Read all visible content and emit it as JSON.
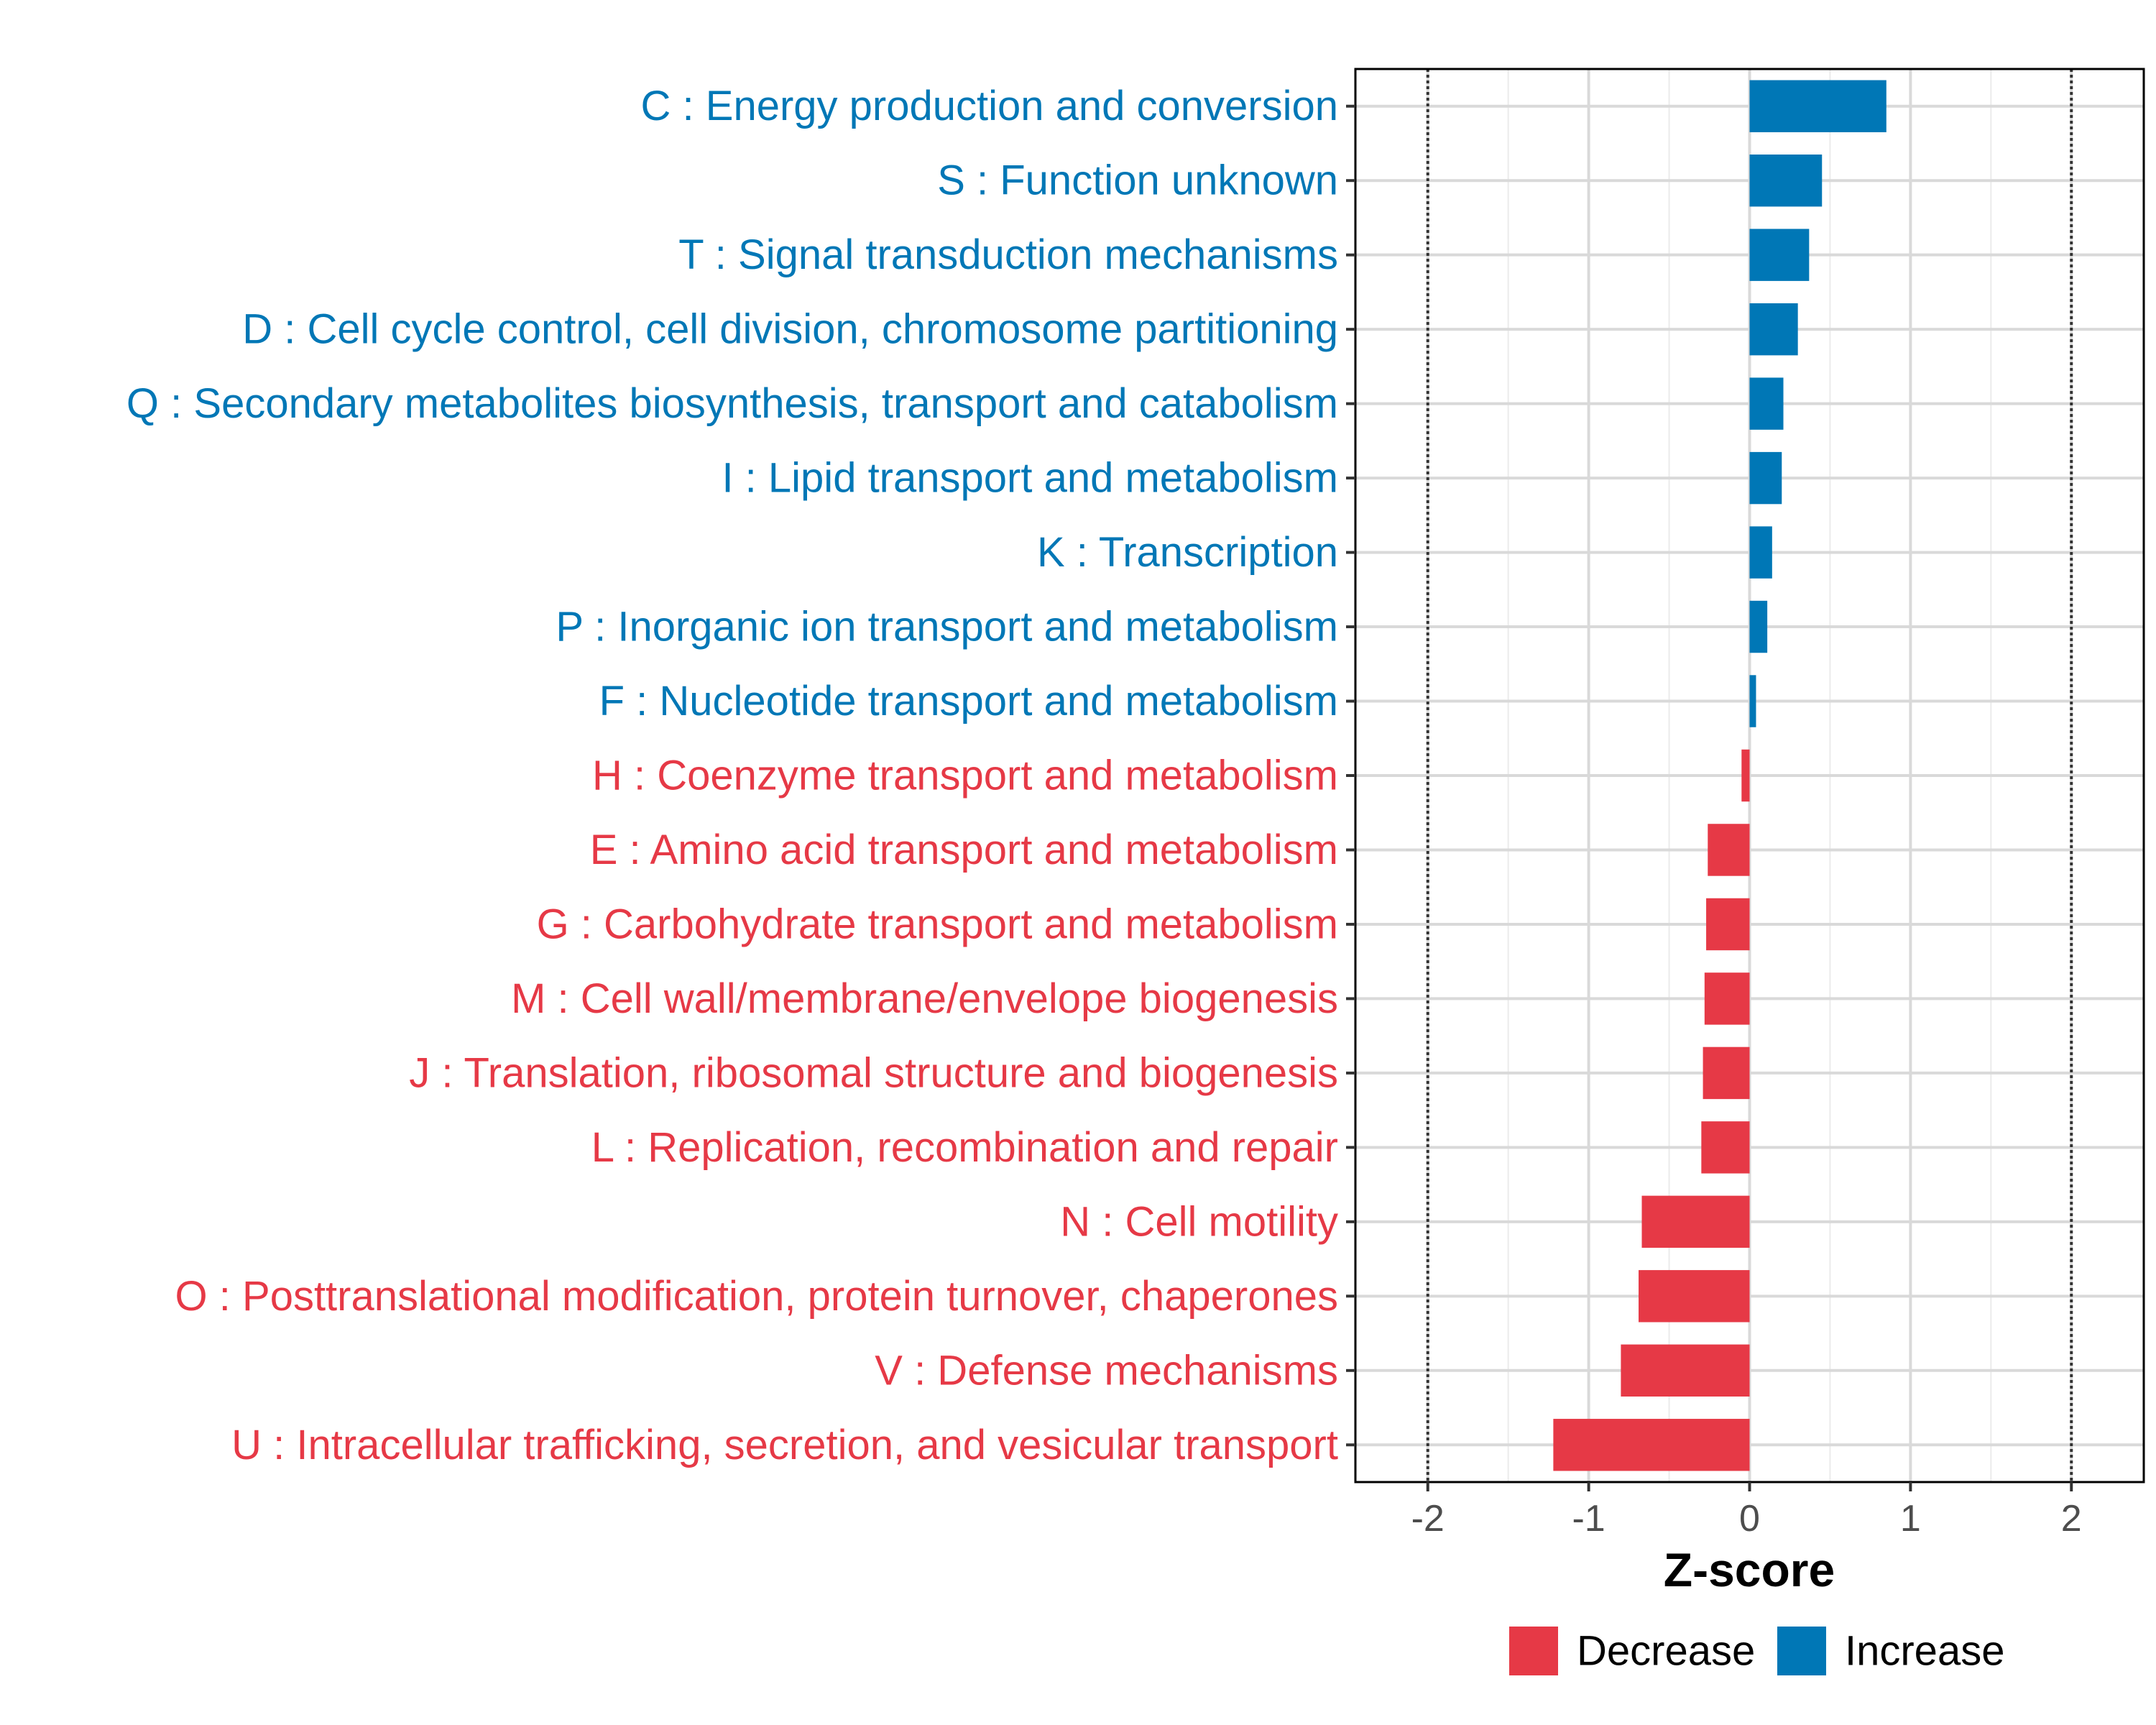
{
  "chart_data": {
    "type": "bar",
    "orientation": "horizontal",
    "title": "",
    "xlabel": "Z-score",
    "ylabel": "",
    "xlim": [
      -2.45,
      2.45
    ],
    "xticks": [
      -2,
      -1,
      0,
      1,
      2
    ],
    "xtick_labels": [
      "-2",
      "-1",
      "0",
      "1",
      "2"
    ],
    "reference_lines": [
      -2,
      2
    ],
    "grid": true,
    "legend_position": "bottom",
    "colors": {
      "Decrease": "#e63946",
      "Increase": "#0077b6"
    },
    "categories": [
      {
        "label": "C : Energy production and conversion",
        "value": 0.85,
        "group": "Increase"
      },
      {
        "label": "S : Function unknown",
        "value": 0.45,
        "group": "Increase"
      },
      {
        "label": "T : Signal transduction mechanisms",
        "value": 0.37,
        "group": "Increase"
      },
      {
        "label": "D : Cell cycle control, cell division, chromosome partitioning",
        "value": 0.3,
        "group": "Increase"
      },
      {
        "label": "Q : Secondary metabolites biosynthesis, transport and catabolism",
        "value": 0.21,
        "group": "Increase"
      },
      {
        "label": "I : Lipid transport and metabolism",
        "value": 0.2,
        "group": "Increase"
      },
      {
        "label": "K : Transcription",
        "value": 0.14,
        "group": "Increase"
      },
      {
        "label": "P : Inorganic ion transport and metabolism",
        "value": 0.11,
        "group": "Increase"
      },
      {
        "label": "F : Nucleotide transport and metabolism",
        "value": 0.04,
        "group": "Increase"
      },
      {
        "label": "H : Coenzyme transport and metabolism",
        "value": -0.05,
        "group": "Decrease"
      },
      {
        "label": "E : Amino acid transport and metabolism",
        "value": -0.26,
        "group": "Decrease"
      },
      {
        "label": "G : Carbohydrate transport and metabolism",
        "value": -0.27,
        "group": "Decrease"
      },
      {
        "label": "M : Cell wall/membrane/envelope biogenesis",
        "value": -0.28,
        "group": "Decrease"
      },
      {
        "label": "J : Translation, ribosomal structure and biogenesis",
        "value": -0.29,
        "group": "Decrease"
      },
      {
        "label": "L : Replication, recombination and repair",
        "value": -0.3,
        "group": "Decrease"
      },
      {
        "label": "N : Cell motility",
        "value": -0.67,
        "group": "Decrease"
      },
      {
        "label": "O : Posttranslational modification, protein turnover, chaperones",
        "value": -0.69,
        "group": "Decrease"
      },
      {
        "label": "V : Defense mechanisms",
        "value": -0.8,
        "group": "Decrease"
      },
      {
        "label": "U : Intracellular trafficking, secretion, and vesicular transport",
        "value": -1.22,
        "group": "Decrease"
      }
    ],
    "legend": [
      {
        "label": "Decrease",
        "color": "#e63946"
      },
      {
        "label": "Increase",
        "color": "#0077b6"
      }
    ]
  }
}
